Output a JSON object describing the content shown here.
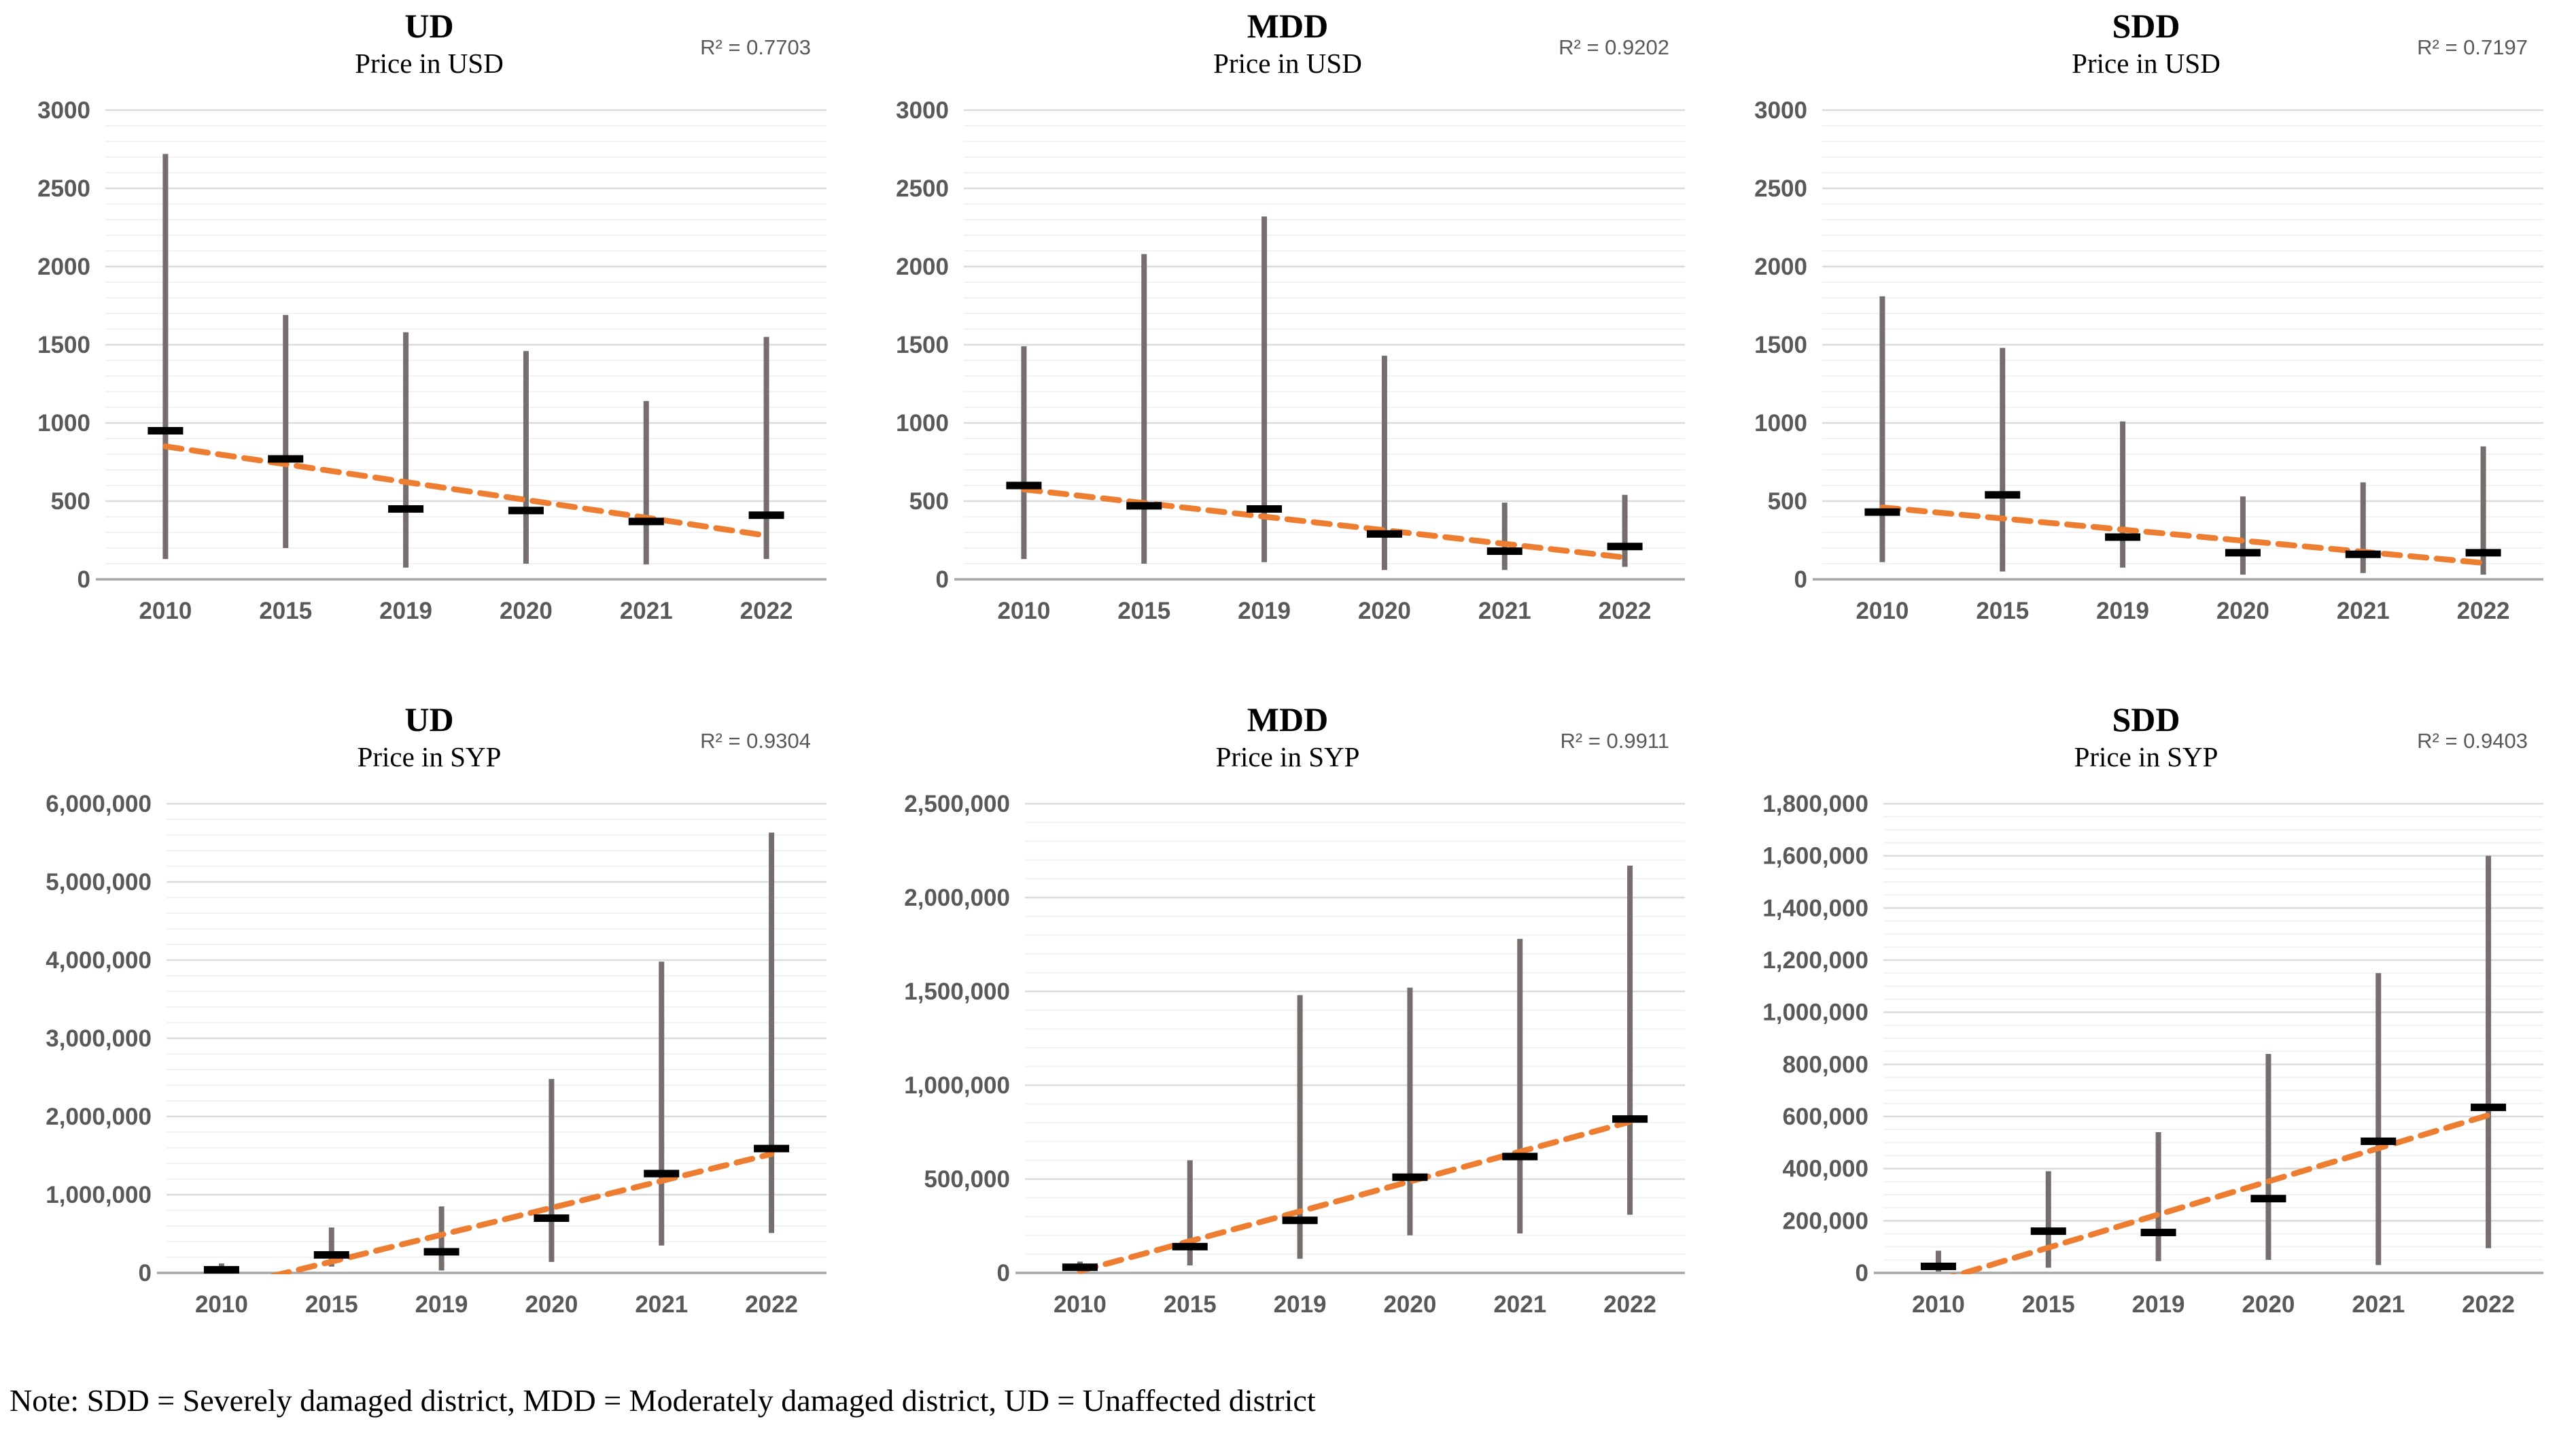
{
  "note": "Note: SDD = Severely damaged district, MDD = Moderately damaged district, UD = Unaffected district",
  "colors": {
    "whisker": "#756E6D",
    "median": "#000000",
    "trend": "#ED7D31",
    "grid_major": "#DBDBDB",
    "grid_minor": "#F2F2F2",
    "axis": "#A6A6A6",
    "tick_text": "#595959"
  },
  "chart_data": [
    {
      "type": "bar",
      "variant": "high-low-range-with-median-and-trend",
      "title": "UD",
      "subtitle": "Price in USD",
      "r2": "R² = 0.7703",
      "categories": [
        "2010",
        "2015",
        "2019",
        "2020",
        "2021",
        "2022"
      ],
      "series": [
        {
          "name": "min",
          "values": [
            130,
            200,
            75,
            100,
            95,
            130
          ]
        },
        {
          "name": "max",
          "values": [
            2720,
            1690,
            1580,
            1460,
            1140,
            1550
          ]
        },
        {
          "name": "median",
          "values": [
            950,
            770,
            450,
            440,
            370,
            410
          ]
        }
      ],
      "trend": {
        "start_value": 850,
        "end_value": 280
      },
      "ylim": [
        0,
        3000
      ],
      "ytick_major": 500,
      "ytick_minor": 100,
      "ytick_labels": [
        "0",
        "500",
        "1000",
        "1500",
        "2000",
        "2500",
        "3000"
      ],
      "ytick_format": "plain",
      "grid": true,
      "legend": "none"
    },
    {
      "type": "bar",
      "variant": "high-low-range-with-median-and-trend",
      "title": "MDD",
      "subtitle": "Price in USD",
      "r2": "R² = 0.9202",
      "categories": [
        "2010",
        "2015",
        "2019",
        "2020",
        "2021",
        "2022"
      ],
      "series": [
        {
          "name": "min",
          "values": [
            130,
            100,
            110,
            60,
            60,
            80
          ]
        },
        {
          "name": "max",
          "values": [
            1490,
            2080,
            2320,
            1430,
            490,
            540
          ]
        },
        {
          "name": "median",
          "values": [
            600,
            470,
            450,
            290,
            180,
            210
          ]
        }
      ],
      "trend": {
        "start_value": 575,
        "end_value": 140
      },
      "ylim": [
        0,
        3000
      ],
      "ytick_major": 500,
      "ytick_minor": 100,
      "ytick_labels": [
        "0",
        "500",
        "1000",
        "1500",
        "2000",
        "2500",
        "3000"
      ],
      "ytick_format": "plain",
      "grid": true,
      "legend": "none"
    },
    {
      "type": "bar",
      "variant": "high-low-range-with-median-and-trend",
      "title": "SDD",
      "subtitle": "Price in USD",
      "r2": "R² = 0.7197",
      "categories": [
        "2010",
        "2015",
        "2019",
        "2020",
        "2021",
        "2022"
      ],
      "series": [
        {
          "name": "min",
          "values": [
            110,
            50,
            75,
            30,
            40,
            30
          ]
        },
        {
          "name": "max",
          "values": [
            1810,
            1480,
            1010,
            530,
            620,
            850
          ]
        },
        {
          "name": "median",
          "values": [
            430,
            540,
            270,
            170,
            160,
            170
          ]
        }
      ],
      "trend": {
        "start_value": 460,
        "end_value": 105
      },
      "ylim": [
        0,
        3000
      ],
      "ytick_major": 500,
      "ytick_minor": 100,
      "ytick_labels": [
        "0",
        "500",
        "1000",
        "1500",
        "2000",
        "2500",
        "3000"
      ],
      "ytick_format": "plain",
      "grid": true,
      "legend": "none"
    },
    {
      "type": "bar",
      "variant": "high-low-range-with-median-and-trend",
      "title": "UD",
      "subtitle": "Price in SYP",
      "r2": "R² = 0.9304",
      "categories": [
        "2010",
        "2015",
        "2019",
        "2020",
        "2021",
        "2022"
      ],
      "series": [
        {
          "name": "min",
          "values": [
            10000,
            80000,
            30000,
            140000,
            350000,
            510000
          ]
        },
        {
          "name": "max",
          "values": [
            120000,
            580000,
            850000,
            2480000,
            3980000,
            5630000
          ]
        },
        {
          "name": "median",
          "values": [
            40000,
            230000,
            270000,
            700000,
            1270000,
            1590000
          ]
        }
      ],
      "trend": {
        "start_value": -200000,
        "end_value": 1520000
      },
      "ylim": [
        0,
        6000000
      ],
      "ytick_major": 1000000,
      "ytick_minor": 200000,
      "ytick_labels": [
        "0",
        "1,000,000",
        "2,000,000",
        "3,000,000",
        "4,000,000",
        "5,000,000",
        "6,000,000"
      ],
      "ytick_format": "comma",
      "grid": true,
      "legend": "none"
    },
    {
      "type": "bar",
      "variant": "high-low-range-with-median-and-trend",
      "title": "MDD",
      "subtitle": "Price in SYP",
      "r2": "R² = 0.9911",
      "categories": [
        "2010",
        "2015",
        "2019",
        "2020",
        "2021",
        "2022"
      ],
      "series": [
        {
          "name": "min",
          "values": [
            10000,
            40000,
            75000,
            200000,
            210000,
            310000
          ]
        },
        {
          "name": "max",
          "values": [
            60000,
            600000,
            1480000,
            1520000,
            1780000,
            2170000
          ]
        },
        {
          "name": "median",
          "values": [
            30000,
            140000,
            280000,
            510000,
            620000,
            820000
          ]
        }
      ],
      "trend": {
        "start_value": 10000,
        "end_value": 805000
      },
      "ylim": [
        0,
        2500000
      ],
      "ytick_major": 500000,
      "ytick_minor": 100000,
      "ytick_labels": [
        "0",
        "500,000",
        "1,000,000",
        "1,500,000",
        "2,000,000",
        "2,500,000"
      ],
      "ytick_format": "comma",
      "grid": true,
      "legend": "none"
    },
    {
      "type": "bar",
      "variant": "high-low-range-with-median-and-trend",
      "title": "SDD",
      "subtitle": "Price in SYP",
      "r2": "R² = 0.9403",
      "categories": [
        "2010",
        "2015",
        "2019",
        "2020",
        "2021",
        "2022"
      ],
      "series": [
        {
          "name": "min",
          "values": [
            5000,
            20000,
            45000,
            50000,
            30000,
            95000
          ]
        },
        {
          "name": "max",
          "values": [
            85000,
            390000,
            540000,
            840000,
            1150000,
            1600000
          ]
        },
        {
          "name": "median",
          "values": [
            25000,
            160000,
            155000,
            285000,
            505000,
            635000
          ]
        }
      ],
      "trend": {
        "start_value": -30000,
        "end_value": 605000
      },
      "ylim": [
        0,
        1800000
      ],
      "ytick_major": 200000,
      "ytick_minor": 50000,
      "ytick_labels": [
        "0",
        "200,000",
        "400,000",
        "600,000",
        "800,000",
        "1,000,000",
        "1,200,000",
        "1,400,000",
        "1,600,000",
        "1,800,000"
      ],
      "ytick_format": "comma",
      "grid": true,
      "legend": "none"
    }
  ]
}
